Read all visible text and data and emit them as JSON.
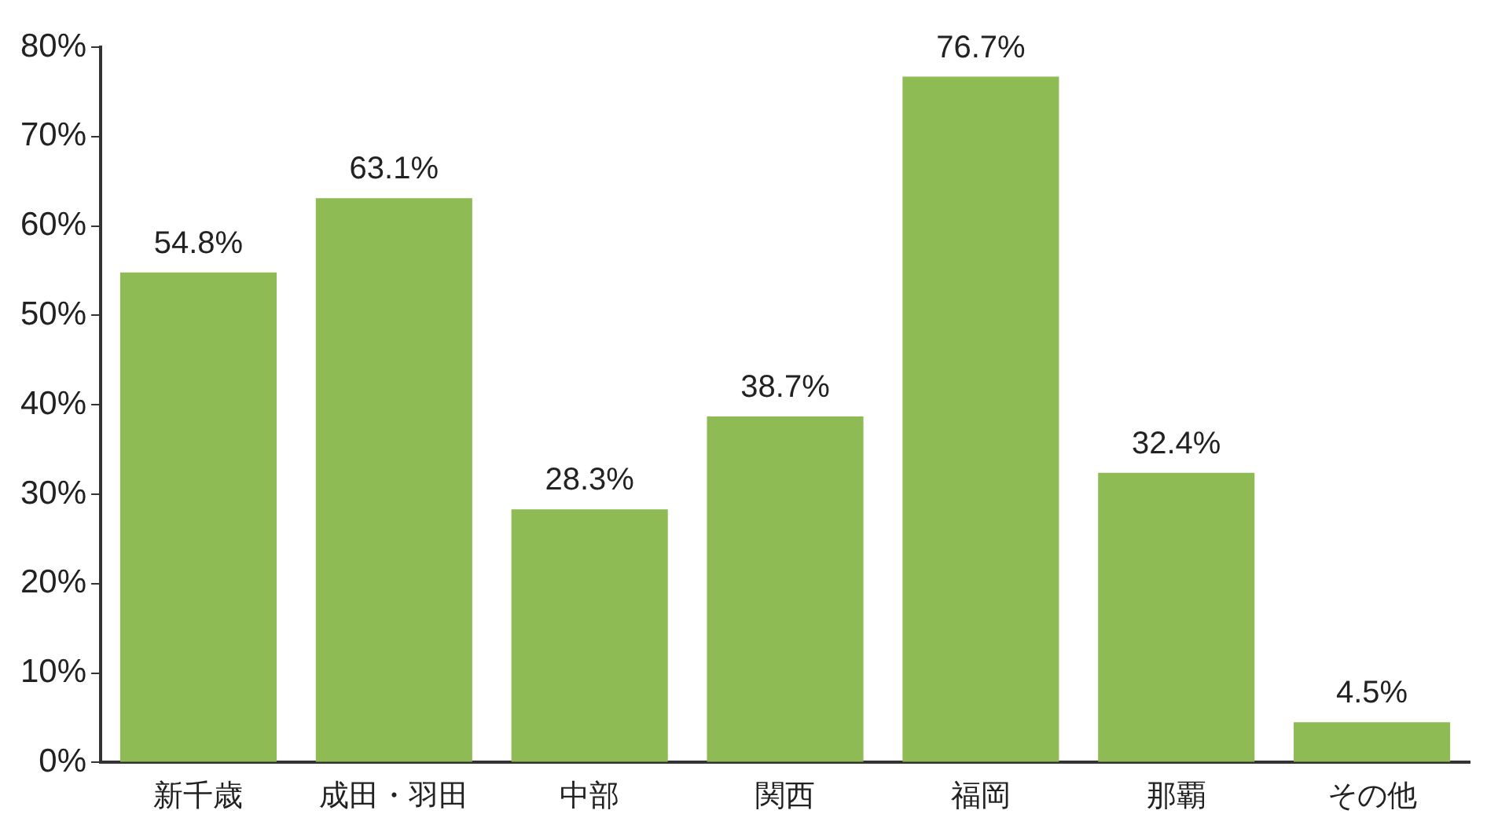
{
  "chart_data": {
    "type": "bar",
    "categories": [
      "新千歳",
      "成田・羽田",
      "中部",
      "関西",
      "福岡",
      "那覇",
      "その他"
    ],
    "values": [
      54.8,
      63.1,
      28.3,
      38.7,
      76.7,
      32.4,
      4.5
    ],
    "value_labels": [
      "54.8%",
      "63.1%",
      "28.3%",
      "38.7%",
      "76.7%",
      "32.4%",
      "4.5%"
    ],
    "color": "#8fbb55",
    "ylim": [
      0,
      80
    ],
    "yticks": [
      {
        "value": 0,
        "label": "0%"
      },
      {
        "value": 10,
        "label": "10%"
      },
      {
        "value": 20,
        "label": "20%"
      },
      {
        "value": 30,
        "label": "30%"
      },
      {
        "value": 40,
        "label": "40%"
      },
      {
        "value": 50,
        "label": "50%"
      },
      {
        "value": 60,
        "label": "60%"
      },
      {
        "value": 70,
        "label": "70%"
      },
      {
        "value": 80,
        "label": "80%"
      }
    ],
    "grid": false,
    "legend": false
  }
}
